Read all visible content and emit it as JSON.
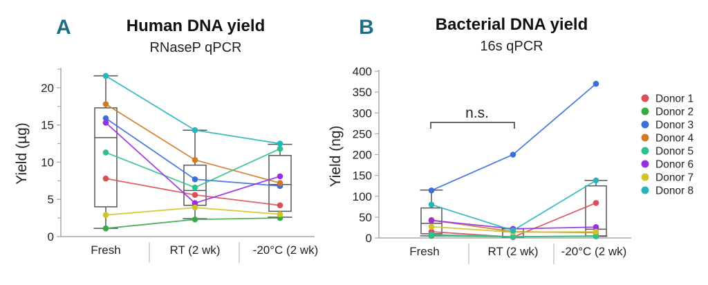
{
  "chart_data": [
    {
      "panel_label": "A",
      "type": "line",
      "title": "Human DNA yield",
      "subtitle": "RNaseP qPCR",
      "xlabel": "",
      "ylabel": "Yield (µg)",
      "categories": [
        "Fresh",
        "RT (2 wk)",
        "-20°C (2 wk)"
      ],
      "ylim": [
        0,
        22.5
      ],
      "yticks": [
        0,
        5,
        10,
        15,
        20
      ],
      "grid": false,
      "boxplots": [
        {
          "min": 1.1,
          "q1": 4.0,
          "median": 13.3,
          "q3": 17.3,
          "max": 21.6
        },
        {
          "min": 2.4,
          "q1": 4.2,
          "median": 6.2,
          "q3": 9.6,
          "max": 14.3
        },
        {
          "min": 2.6,
          "q1": 3.4,
          "median": 7.0,
          "q3": 10.9,
          "max": 12.4
        }
      ],
      "series": [
        {
          "name": "Donor 1",
          "color": "#d9505a",
          "values": [
            7.8,
            5.6,
            4.2
          ]
        },
        {
          "name": "Donor 2",
          "color": "#3aaa49",
          "values": [
            1.1,
            2.3,
            2.5
          ]
        },
        {
          "name": "Donor 3",
          "color": "#3b6fd8",
          "values": [
            15.9,
            7.7,
            6.8
          ]
        },
        {
          "name": "Donor 4",
          "color": "#d07a28",
          "values": [
            17.8,
            10.3,
            7.2
          ]
        },
        {
          "name": "Donor 5",
          "color": "#2fc08f",
          "values": [
            11.3,
            6.6,
            11.8
          ]
        },
        {
          "name": "Donor 6",
          "color": "#9a2fe0",
          "values": [
            15.3,
            4.5,
            8.1
          ]
        },
        {
          "name": "Donor 7",
          "color": "#cfc52a",
          "values": [
            2.9,
            3.9,
            3.0
          ]
        },
        {
          "name": "Donor 8",
          "color": "#27b5bd",
          "values": [
            21.6,
            14.3,
            12.5
          ]
        }
      ]
    },
    {
      "panel_label": "B",
      "type": "line",
      "title": "Bacterial DNA yield",
      "subtitle": "16s qPCR",
      "xlabel": "",
      "ylabel": "Yield (ng)",
      "categories": [
        "Fresh",
        "RT (2 wk)",
        "-20°C (2 wk)"
      ],
      "ylim": [
        0,
        400
      ],
      "yticks": [
        0,
        50,
        100,
        150,
        200,
        250,
        300,
        350,
        400
      ],
      "grid": false,
      "annotation": {
        "text": "n.s.",
        "between": [
          "Fresh",
          "RT (2 wk)"
        ]
      },
      "boxplots": [
        {
          "min": 5,
          "q1": 10,
          "median": 35,
          "q3": 72,
          "max": 115
        },
        {
          "min": 2,
          "q1": 3,
          "median": 15,
          "q3": 22,
          "max": 22
        },
        {
          "min": 4,
          "q1": 5,
          "median": 21,
          "q3": 125,
          "max": 138
        }
      ],
      "series": [
        {
          "name": "Donor 1",
          "color": "#d9505a",
          "values": [
            15,
            2,
            84
          ]
        },
        {
          "name": "Donor 2",
          "color": "#3aaa49",
          "values": [
            5,
            3,
            4
          ]
        },
        {
          "name": "Donor 3",
          "color": "#3b6fd8",
          "values": [
            114,
            200,
            370
          ]
        },
        {
          "name": "Donor 4",
          "color": "#d07a28",
          "values": [
            43,
            15,
            13
          ]
        },
        {
          "name": "Donor 5",
          "color": "#2fc08f",
          "values": [
            8,
            3,
            5
          ]
        },
        {
          "name": "Donor 6",
          "color": "#9a2fe0",
          "values": [
            42,
            22,
            26
          ]
        },
        {
          "name": "Donor 7",
          "color": "#cfc52a",
          "values": [
            27,
            14,
            15
          ]
        },
        {
          "name": "Donor 8",
          "color": "#27b5bd",
          "values": [
            80,
            18,
            138
          ]
        }
      ]
    }
  ],
  "legend": {
    "placement": "right",
    "entries": [
      "Donor 1",
      "Donor 2",
      "Donor 3",
      "Donor 4",
      "Donor 5",
      "Donor 6",
      "Donor 7",
      "Donor 8"
    ]
  },
  "colors": {
    "panel_label": "#1c6e86",
    "axis": "#a8a8a8",
    "box": "#555555"
  }
}
